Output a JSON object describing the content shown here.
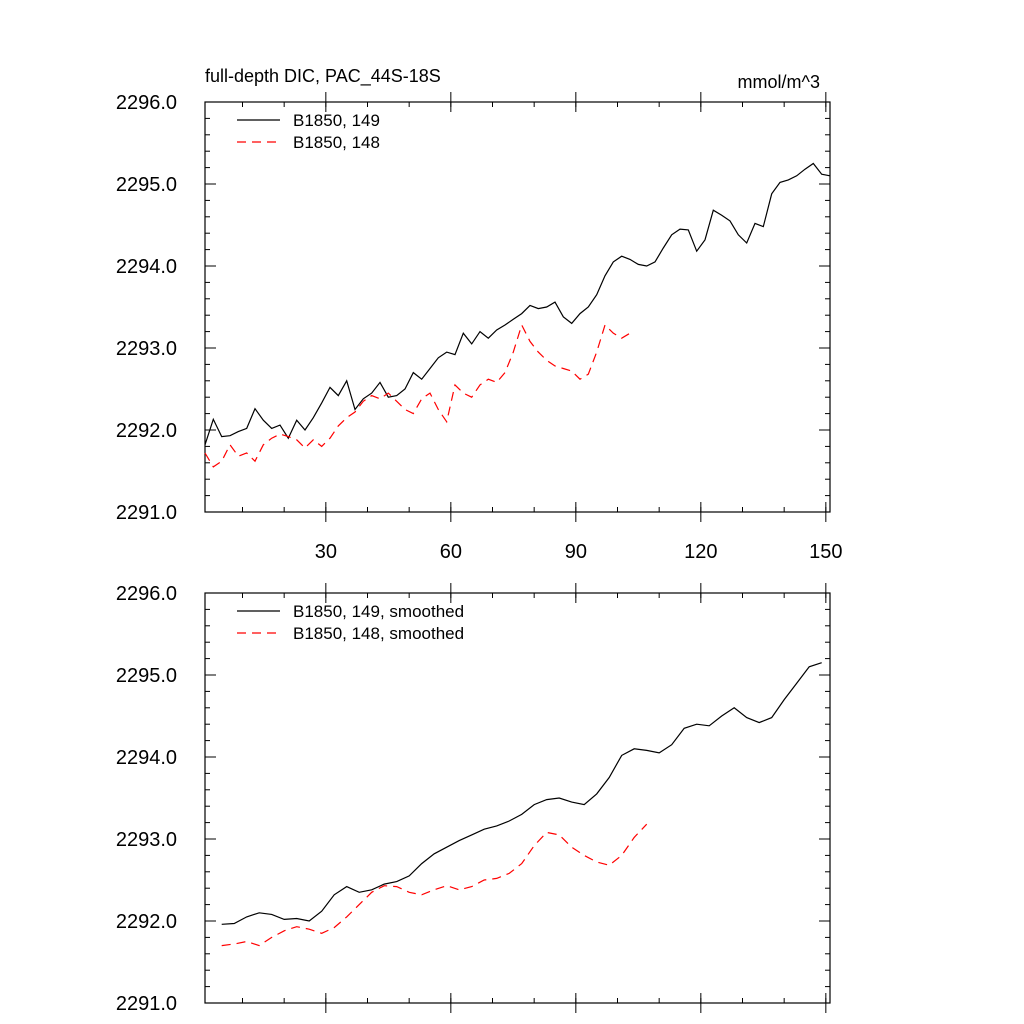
{
  "chart_data": [
    {
      "type": "line",
      "title": "full-depth DIC, PAC_44S-18S",
      "units": "mmol/m^3",
      "xlim": [
        1,
        151
      ],
      "ylim": [
        2291.0,
        2296.0
      ],
      "x_ticks": [
        30,
        60,
        90,
        120,
        150
      ],
      "x_tick_labels": [
        "30",
        "60",
        "90",
        "120",
        "150"
      ],
      "y_ticks": [
        2291.0,
        2292.0,
        2293.0,
        2294.0,
        2295.0,
        2296.0
      ],
      "y_tick_labels": [
        "2291.0",
        "2292.0",
        "2293.0",
        "2294.0",
        "2295.0",
        "2296.0"
      ],
      "legend_position": "top-left",
      "series": [
        {
          "name": "B1850, 149",
          "color": "#000000",
          "dash": "solid",
          "x": [
            1,
            3,
            5,
            7,
            9,
            11,
            13,
            15,
            17,
            19,
            21,
            23,
            25,
            27,
            29,
            31,
            33,
            35,
            37,
            39,
            41,
            43,
            45,
            47,
            49,
            51,
            53,
            55,
            57,
            59,
            61,
            63,
            65,
            67,
            69,
            71,
            73,
            75,
            77,
            79,
            81,
            83,
            85,
            87,
            89,
            91,
            93,
            95,
            97,
            99,
            101,
            103,
            105,
            107,
            109,
            111,
            113,
            115,
            117,
            119,
            121,
            123,
            125,
            127,
            129,
            131,
            133,
            135,
            137,
            139,
            141,
            143,
            145,
            147,
            149,
            151
          ],
          "y": [
            2291.82,
            2292.13,
            2291.92,
            2291.93,
            2291.98,
            2292.02,
            2292.26,
            2292.12,
            2292.02,
            2292.06,
            2291.9,
            2292.12,
            2292.0,
            2292.15,
            2292.33,
            2292.52,
            2292.42,
            2292.6,
            2292.25,
            2292.38,
            2292.45,
            2292.58,
            2292.4,
            2292.42,
            2292.5,
            2292.7,
            2292.62,
            2292.75,
            2292.88,
            2292.95,
            2292.92,
            2293.18,
            2293.05,
            2293.2,
            2293.12,
            2293.22,
            2293.28,
            2293.35,
            2293.42,
            2293.52,
            2293.48,
            2293.5,
            2293.56,
            2293.38,
            2293.3,
            2293.42,
            2293.5,
            2293.65,
            2293.88,
            2294.05,
            2294.12,
            2294.08,
            2294.02,
            2294.0,
            2294.05,
            2294.22,
            2294.38,
            2294.45,
            2294.44,
            2294.18,
            2294.32,
            2294.68,
            2294.62,
            2294.55,
            2294.38,
            2294.28,
            2294.52,
            2294.48,
            2294.88,
            2295.02,
            2295.05,
            2295.1,
            2295.18,
            2295.25,
            2295.12,
            2295.1
          ]
        },
        {
          "name": "B1850, 148",
          "color": "#ff0000",
          "dash": "dashed",
          "x": [
            1,
            3,
            5,
            7,
            9,
            11,
            13,
            15,
            17,
            19,
            21,
            23,
            25,
            27,
            29,
            31,
            33,
            35,
            37,
            39,
            41,
            43,
            45,
            47,
            49,
            51,
            53,
            55,
            57,
            59,
            61,
            63,
            65,
            67,
            69,
            71,
            73,
            75,
            77,
            79,
            81,
            83,
            85,
            87,
            89,
            91,
            93,
            95,
            97,
            99,
            101,
            103
          ],
          "y": [
            2291.72,
            2291.55,
            2291.62,
            2291.82,
            2291.68,
            2291.72,
            2291.62,
            2291.82,
            2291.9,
            2291.95,
            2291.92,
            2291.88,
            2291.78,
            2291.88,
            2291.8,
            2291.9,
            2292.05,
            2292.15,
            2292.22,
            2292.35,
            2292.42,
            2292.38,
            2292.45,
            2292.35,
            2292.25,
            2292.2,
            2292.38,
            2292.45,
            2292.25,
            2292.1,
            2292.55,
            2292.45,
            2292.4,
            2292.55,
            2292.62,
            2292.58,
            2292.7,
            2292.95,
            2293.28,
            2293.08,
            2292.95,
            2292.85,
            2292.78,
            2292.75,
            2292.72,
            2292.62,
            2292.68,
            2292.95,
            2293.28,
            2293.18,
            2293.12,
            2293.18
          ]
        }
      ]
    },
    {
      "type": "line",
      "xlim": [
        1,
        151
      ],
      "ylim": [
        2291.0,
        2296.0
      ],
      "y_ticks": [
        2291.0,
        2292.0,
        2293.0,
        2294.0,
        2295.0,
        2296.0
      ],
      "y_tick_labels": [
        "2291.0",
        "2292.0",
        "2293.0",
        "2294.0",
        "2295.0",
        "2296.0"
      ],
      "x_ticks": [
        30,
        60,
        90,
        120,
        150
      ],
      "legend_position": "top-left",
      "series": [
        {
          "name": "B1850, 149, smoothed",
          "color": "#000000",
          "dash": "solid",
          "x": [
            5,
            8,
            11,
            14,
            17,
            20,
            23,
            26,
            29,
            32,
            35,
            38,
            41,
            44,
            47,
            50,
            53,
            56,
            59,
            62,
            65,
            68,
            71,
            74,
            77,
            80,
            83,
            86,
            89,
            92,
            95,
            98,
            101,
            104,
            107,
            110,
            113,
            116,
            119,
            122,
            125,
            128,
            131,
            134,
            137,
            140,
            143,
            146,
            149
          ],
          "y": [
            2291.96,
            2291.97,
            2292.05,
            2292.1,
            2292.08,
            2292.02,
            2292.03,
            2292.0,
            2292.12,
            2292.32,
            2292.42,
            2292.35,
            2292.38,
            2292.45,
            2292.48,
            2292.55,
            2292.7,
            2292.82,
            2292.9,
            2292.98,
            2293.05,
            2293.12,
            2293.16,
            2293.22,
            2293.3,
            2293.42,
            2293.48,
            2293.5,
            2293.45,
            2293.42,
            2293.55,
            2293.75,
            2294.02,
            2294.1,
            2294.08,
            2294.05,
            2294.15,
            2294.35,
            2294.4,
            2294.38,
            2294.5,
            2294.6,
            2294.48,
            2294.42,
            2294.48,
            2294.7,
            2294.9,
            2295.1,
            2295.15
          ]
        },
        {
          "name": "B1850, 148, smoothed",
          "color": "#ff0000",
          "dash": "dashed",
          "x": [
            5,
            8,
            11,
            14,
            17,
            20,
            23,
            26,
            29,
            32,
            35,
            38,
            41,
            44,
            47,
            50,
            53,
            56,
            59,
            62,
            65,
            68,
            71,
            74,
            77,
            80,
            83,
            86,
            89,
            92,
            95,
            98,
            101,
            104,
            107
          ],
          "y": [
            2291.7,
            2291.72,
            2291.75,
            2291.7,
            2291.8,
            2291.88,
            2291.93,
            2291.9,
            2291.85,
            2291.92,
            2292.05,
            2292.2,
            2292.35,
            2292.43,
            2292.42,
            2292.35,
            2292.32,
            2292.38,
            2292.43,
            2292.38,
            2292.42,
            2292.5,
            2292.52,
            2292.58,
            2292.7,
            2292.92,
            2293.08,
            2293.05,
            2292.9,
            2292.8,
            2292.72,
            2292.68,
            2292.8,
            2293.02,
            2293.18
          ]
        }
      ]
    }
  ]
}
